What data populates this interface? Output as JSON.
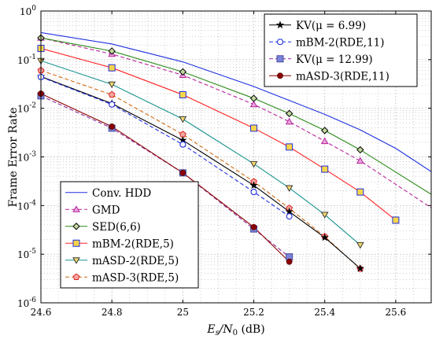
{
  "chart_data": {
    "type": "line",
    "xlabel_main": "E",
    "xlabel_sub1": "s",
    "xlabel_mid": "/N",
    "xlabel_sub2": "0",
    "xlabel_unit": " (dB)",
    "ylabel": "Frame Error Rate",
    "xlim": [
      24.6,
      25.7
    ],
    "ylim": [
      1e-06,
      1
    ],
    "yscale": "log",
    "grid": true,
    "x_ticks": [
      "24.6",
      "24.8",
      "25",
      "25.2",
      "25.4",
      "25.6"
    ],
    "x_tick_values": [
      24.6,
      24.8,
      25.0,
      25.2,
      25.4,
      25.6
    ],
    "y_tick_exponents": [
      "0",
      "-1",
      "-2",
      "-3",
      "-4",
      "-5",
      "-6"
    ],
    "y_tick_base": "10",
    "legend_top_right": [
      {
        "label": "KV(μ = 6.99)",
        "series": "KV1"
      },
      {
        "label": "mBM-2(RDE,11)",
        "series": "mBM11"
      },
      {
        "label": "KV(μ = 12.99)",
        "series": "KV2"
      },
      {
        "label": "mASD-3(RDE,11)",
        "series": "mASD11"
      }
    ],
    "legend_bottom_left": [
      {
        "label": "Conv. HDD",
        "series": "HDD"
      },
      {
        "label": "GMD",
        "series": "GMD"
      },
      {
        "label": "SED(6,6)",
        "series": "SED"
      },
      {
        "label": "mBM-2(RDE,5)",
        "series": "mBM5"
      },
      {
        "label": "mASD-2(RDE,5)",
        "series": "mASD2"
      },
      {
        "label": "mASD-3(RDE,5)",
        "series": "mASD3"
      }
    ],
    "series": [
      {
        "key": "HDD",
        "color": "#1f2fe0",
        "dash": "",
        "marker": "none",
        "x": [
          24.6,
          24.8,
          25.0,
          25.2,
          25.4,
          25.5,
          25.6,
          25.7
        ],
        "y": [
          0.36,
          0.21,
          0.09,
          0.028,
          0.0075,
          0.0036,
          0.0015,
          0.0005
        ]
      },
      {
        "key": "GMD",
        "color": "#b8249c",
        "dash": "5,3",
        "marker": "triangle",
        "x": [
          24.6,
          24.8,
          25.0,
          25.2,
          25.3,
          25.4,
          25.5,
          25.7
        ],
        "y": [
          0.28,
          0.13,
          0.048,
          0.012,
          0.0053,
          0.0021,
          0.00083,
          9e-05
        ]
      },
      {
        "key": "SED",
        "color": "#2a8a17",
        "dash": "",
        "marker": "diamond",
        "x": [
          24.6,
          24.8,
          25.0,
          25.2,
          25.3,
          25.4,
          25.5,
          25.7
        ],
        "y": [
          0.28,
          0.15,
          0.056,
          0.016,
          0.0078,
          0.0035,
          0.0014,
          0.00017
        ]
      },
      {
        "key": "mBM5",
        "color": "#ff2222",
        "dash": "",
        "marker": "square",
        "x": [
          24.6,
          24.8,
          25.0,
          25.2,
          25.3,
          25.4,
          25.5,
          25.6
        ],
        "y": [
          0.17,
          0.068,
          0.019,
          0.0039,
          0.0016,
          0.00056,
          0.00019,
          5e-05
        ]
      },
      {
        "key": "mASD2",
        "color": "#15938d",
        "dash": "",
        "marker": "triangledown",
        "x": [
          24.6,
          24.8,
          25.0,
          25.2,
          25.3,
          25.4,
          25.5
        ],
        "y": [
          0.095,
          0.031,
          0.006,
          0.00072,
          0.00023,
          6.5e-05,
          1.55e-05
        ]
      },
      {
        "key": "mASD3",
        "color": "#d06a10",
        "dash": "5,3",
        "marker": "pentagon",
        "x": [
          24.6,
          24.8,
          25.0,
          25.2,
          25.3,
          25.4,
          25.5
        ],
        "y": [
          0.06,
          0.019,
          0.0029,
          0.00031,
          8.8e-05,
          2.3e-05,
          5e-06
        ]
      },
      {
        "key": "KV1",
        "color": "#000000",
        "dash": "",
        "marker": "star",
        "x": [
          24.6,
          24.8,
          25.0,
          25.2,
          25.3,
          25.4,
          25.5
        ],
        "y": [
          0.045,
          0.0125,
          0.0022,
          0.00026,
          7.5e-05,
          2.2e-05,
          5.1e-06
        ]
      },
      {
        "key": "mBM11",
        "color": "#1f2fe0",
        "dash": "5,3",
        "marker": "circleopen",
        "x": [
          24.6,
          24.8,
          25.0,
          25.2,
          25.3
        ],
        "y": [
          0.044,
          0.012,
          0.0018,
          0.00019,
          6e-05
        ]
      },
      {
        "key": "KV2",
        "color": "#8a2c9a",
        "dash": "5,3",
        "marker": "squarefilled",
        "x": [
          24.6,
          24.8,
          25.0,
          25.2,
          25.3
        ],
        "y": [
          0.018,
          0.0039,
          0.00047,
          3.3e-05,
          8.8e-06
        ]
      },
      {
        "key": "mASD11",
        "color": "#8b0000",
        "dash": "",
        "marker": "circlefilled",
        "x": [
          24.6,
          24.8,
          25.0,
          25.2,
          25.3
        ],
        "y": [
          0.02,
          0.0042,
          0.00047,
          3.6e-05,
          7e-06
        ]
      }
    ]
  }
}
